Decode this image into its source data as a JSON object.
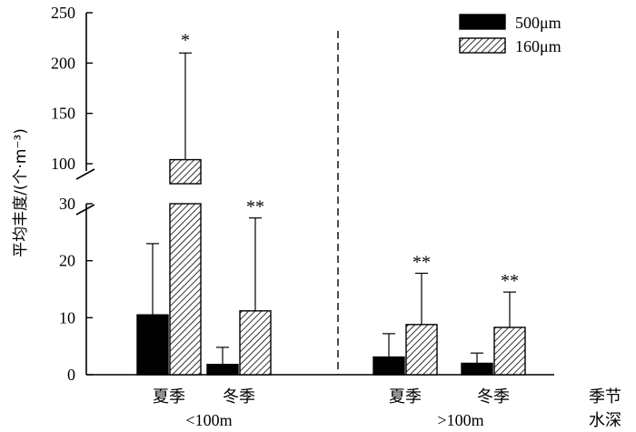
{
  "chart_data": {
    "type": "bar",
    "ylabel": "平均丰度/(个·m⁻³)",
    "y_axis_break": true,
    "ylim_lower": [
      0,
      30
    ],
    "ylim_upper": [
      100,
      250
    ],
    "yticks_lower": [
      "0",
      "10",
      "20",
      "30"
    ],
    "yticks_upper": [
      "100",
      "150",
      "200",
      "250"
    ],
    "legend_position": "top-right",
    "grid": false,
    "series": [
      {
        "name": "500μm",
        "color": "#000000",
        "pattern": "solid"
      },
      {
        "name": "160μm",
        "color": "#888888",
        "pattern": "diagonal-hatch"
      }
    ],
    "axis_row_titles": {
      "season": "季节",
      "depth": "水深"
    },
    "depth_groups": [
      {
        "label": "<100m",
        "categories": [
          {
            "label": "夏季",
            "bars": [
              {
                "series": "500μm",
                "value": 10.5,
                "error_upper": 23.0,
                "annotation": ""
              },
              {
                "series": "160μm",
                "value": 104.0,
                "error_upper": 210.0,
                "annotation": "*"
              }
            ]
          },
          {
            "label": "冬季",
            "bars": [
              {
                "series": "500μm",
                "value": 1.8,
                "error_upper": 4.8,
                "annotation": ""
              },
              {
                "series": "160μm",
                "value": 11.2,
                "error_upper": 27.5,
                "annotation": "**"
              }
            ]
          }
        ]
      },
      {
        "label": ">100m",
        "categories": [
          {
            "label": "夏季",
            "bars": [
              {
                "series": "500μm",
                "value": 3.1,
                "error_upper": 7.2,
                "annotation": ""
              },
              {
                "series": "160μm",
                "value": 8.8,
                "error_upper": 17.8,
                "annotation": "**"
              }
            ]
          },
          {
            "label": "冬季",
            "bars": [
              {
                "series": "500μm",
                "value": 2.0,
                "error_upper": 3.8,
                "annotation": ""
              },
              {
                "series": "160μm",
                "value": 8.3,
                "error_upper": 14.5,
                "annotation": "**"
              }
            ]
          }
        ]
      }
    ]
  }
}
